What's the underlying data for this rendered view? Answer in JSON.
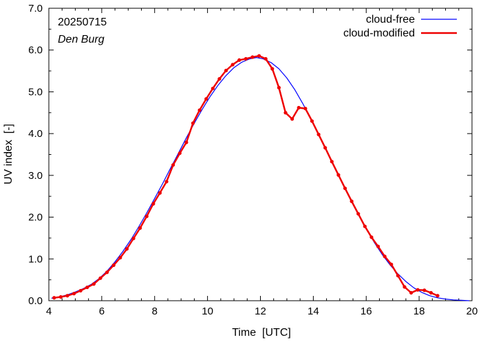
{
  "chart_data": {
    "type": "line",
    "annotations": {
      "date": "20250715",
      "station": "Den Burg"
    },
    "xlabel": "Time  [UTC]",
    "ylabel": "UV index  [-]",
    "xlim": [
      4,
      20
    ],
    "ylim": [
      0,
      7
    ],
    "x_ticks": [
      4,
      6,
      8,
      10,
      12,
      14,
      16,
      18,
      20
    ],
    "x_tick_labels": [
      "4",
      "6",
      "8",
      "10",
      "12",
      "14",
      "16",
      "18",
      "20"
    ],
    "y_ticks": [
      0,
      1,
      2,
      3,
      4,
      5,
      6,
      7
    ],
    "y_tick_labels": [
      "0.0",
      "1.0",
      "2.0",
      "3.0",
      "4.0",
      "5.0",
      "6.0",
      "7.0"
    ],
    "grid": false,
    "legend_position": "top-right",
    "series": [
      {
        "name": "cloud-free",
        "color": "#0000ff",
        "markers": false,
        "x": [
          4.1,
          4.4,
          4.7,
          5.0,
          5.3,
          5.6,
          5.9,
          6.2,
          6.5,
          6.8,
          7.1,
          7.4,
          7.7,
          8.0,
          8.3,
          8.6,
          8.9,
          9.2,
          9.5,
          9.8,
          10.1,
          10.4,
          10.7,
          11.0,
          11.3,
          11.6,
          11.85,
          12.1,
          12.4,
          12.7,
          13.0,
          13.3,
          13.6,
          13.9,
          14.2,
          14.5,
          14.8,
          15.1,
          15.4,
          15.7,
          16.0,
          16.3,
          16.6,
          16.9,
          17.2,
          17.5,
          17.8,
          18.1,
          18.4,
          18.7,
          19.0,
          19.3,
          19.6,
          19.9
        ],
        "y": [
          0.06,
          0.09,
          0.14,
          0.21,
          0.29,
          0.39,
          0.53,
          0.71,
          0.93,
          1.18,
          1.46,
          1.77,
          2.1,
          2.45,
          2.8,
          3.17,
          3.53,
          3.9,
          4.25,
          4.58,
          4.89,
          5.16,
          5.39,
          5.58,
          5.71,
          5.79,
          5.82,
          5.79,
          5.7,
          5.55,
          5.33,
          5.05,
          4.72,
          4.36,
          3.98,
          3.6,
          3.2,
          2.81,
          2.43,
          2.06,
          1.72,
          1.4,
          1.11,
          0.86,
          0.64,
          0.46,
          0.31,
          0.2,
          0.12,
          0.07,
          0.04,
          0.02,
          0.01,
          0.0
        ]
      },
      {
        "name": "cloud-modified",
        "color": "#ee0000",
        "markers": true,
        "x": [
          4.2,
          4.45,
          4.7,
          4.95,
          5.2,
          5.45,
          5.7,
          5.95,
          6.2,
          6.45,
          6.7,
          6.95,
          7.2,
          7.45,
          7.7,
          7.95,
          8.2,
          8.45,
          8.7,
          8.95,
          9.2,
          9.45,
          9.7,
          9.95,
          10.2,
          10.45,
          10.7,
          10.95,
          11.2,
          11.45,
          11.7,
          11.95,
          12.2,
          12.45,
          12.7,
          12.95,
          13.2,
          13.45,
          13.7,
          13.95,
          14.2,
          14.45,
          14.7,
          14.95,
          15.2,
          15.45,
          15.7,
          15.95,
          16.2,
          16.45,
          16.7,
          16.95,
          17.2,
          17.45,
          17.7,
          17.95,
          18.2,
          18.45,
          18.7
        ],
        "y": [
          0.07,
          0.09,
          0.12,
          0.17,
          0.24,
          0.32,
          0.4,
          0.54,
          0.68,
          0.85,
          1.03,
          1.24,
          1.49,
          1.74,
          2.02,
          2.32,
          2.58,
          2.85,
          3.25,
          3.53,
          3.79,
          4.25,
          4.56,
          4.83,
          5.08,
          5.31,
          5.51,
          5.65,
          5.76,
          5.79,
          5.83,
          5.86,
          5.79,
          5.55,
          5.1,
          4.5,
          4.35,
          4.62,
          4.6,
          4.3,
          3.98,
          3.66,
          3.33,
          3.01,
          2.69,
          2.38,
          2.08,
          1.78,
          1.52,
          1.3,
          1.06,
          0.87,
          0.6,
          0.33,
          0.19,
          0.26,
          0.25,
          0.19,
          0.12
        ]
      }
    ]
  }
}
